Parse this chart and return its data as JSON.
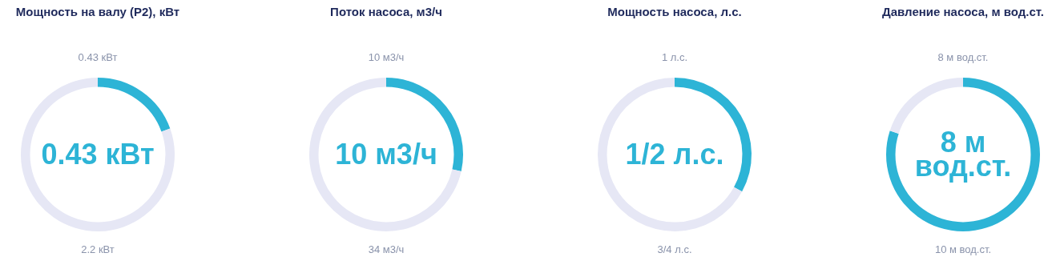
{
  "chart_data": [
    {
      "type": "donut",
      "title": "Мощность на валу (P2), кВт",
      "categories": [
        null,
        null
      ],
      "values": [
        19.5,
        80.5
      ],
      "colors": [
        "#2db4d6",
        "#e6e7f5"
      ],
      "annotations": [
        "0.43 кВт",
        "0.43 кВт",
        "2.2 кВт"
      ]
    },
    {
      "type": "donut",
      "title": "Поток насоса, м3/ч",
      "categories": [
        null,
        null
      ],
      "values": [
        28.5,
        71.5
      ],
      "colors": [
        "#2db4d6",
        "#e6e7f5"
      ],
      "annotations": [
        "10 м3/ч",
        "10 м3/ч",
        "34 м3/ч"
      ]
    },
    {
      "type": "donut",
      "title": "Мощность насоса, л.с.",
      "categories": [
        null,
        null
      ],
      "values": [
        33,
        67
      ],
      "colors": [
        "#2db4d6",
        "#e6e7f5"
      ],
      "annotations": [
        "1 л.с.",
        "1/2 л.с.",
        "3/4 л.с."
      ]
    },
    {
      "type": "donut",
      "title": "Давление насоса, м вод.ст.",
      "categories": [
        null,
        null
      ],
      "values": [
        80,
        20
      ],
      "colors": [
        "#2db4d6",
        "#e6e7f5"
      ],
      "annotations": [
        "8 м вод.ст.",
        "8 м вод.ст.",
        "10 м вод.ст."
      ]
    }
  ]
}
